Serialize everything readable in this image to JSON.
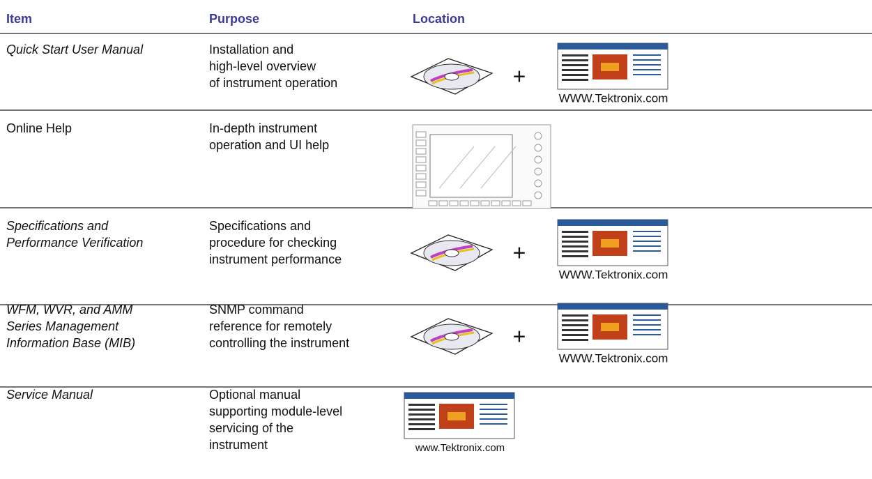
{
  "header": {
    "item": "Item",
    "purpose": "Purpose",
    "location": "Location"
  },
  "rows": [
    {
      "item": [
        "Quick Start User Manual"
      ],
      "italic": true,
      "purpose": [
        "Installation and",
        "high-level overview",
        "of instrument operation"
      ],
      "location": {
        "joiner": "+",
        "caption": "WWW.Tektronix.com"
      }
    },
    {
      "item": [
        "Online Help"
      ],
      "italic": false,
      "purpose": [
        "In-depth instrument",
        "operation and UI help"
      ]
    },
    {
      "item": [
        "Specifications and",
        "Performance Verification"
      ],
      "italic": true,
      "purpose": [
        "Specifications and",
        "procedure for checking",
        "instrument performance"
      ],
      "location": {
        "joiner": "+",
        "caption": "WWW.Tektronix.com"
      }
    },
    {
      "item": [
        "WFM, WVR, and AMM",
        "Series Management",
        "Information Base (MIB)"
      ],
      "italic": true,
      "purpose": [
        "SNMP command",
        "reference for remotely",
        "controlling the instrument"
      ],
      "location": {
        "joiner": "+",
        "caption": "WWW.Tektronix.com"
      }
    },
    {
      "item": [
        "Service Manual"
      ],
      "italic": true,
      "purpose": [
        "Optional manual",
        "supporting module-level",
        "servicing of the",
        "instrument"
      ],
      "location": {
        "caption": "www.Tektronix.com"
      }
    }
  ]
}
